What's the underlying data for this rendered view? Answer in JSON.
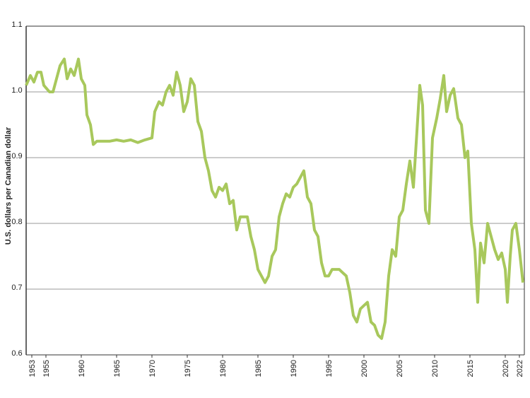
{
  "chart_data": {
    "type": "line",
    "y_label": "U.S. dollars per Canadian dollar",
    "x": [
      1952.2,
      1952.8,
      1953.3,
      1953.8,
      1954.3,
      1954.7,
      1955.5,
      1956.0,
      1956.5,
      1957.0,
      1957.6,
      1958.0,
      1958.5,
      1959.0,
      1959.6,
      1960.0,
      1960.5,
      1960.8,
      1961.3,
      1961.7,
      1962.2,
      1963,
      1964,
      1965,
      1966,
      1967,
      1968,
      1969,
      1970,
      1970.4,
      1971,
      1971.5,
      1972,
      1972.5,
      1973,
      1973.5,
      1974,
      1974.5,
      1975,
      1975.5,
      1976,
      1976.5,
      1977,
      1977.5,
      1978,
      1978.5,
      1979,
      1979.5,
      1980,
      1980.5,
      1981,
      1981.5,
      1982,
      1982.5,
      1983,
      1983.5,
      1984,
      1984.5,
      1985,
      1985.5,
      1986,
      1986.5,
      1987,
      1987.5,
      1988,
      1988.5,
      1989,
      1989.5,
      1990,
      1990.5,
      1991,
      1991.5,
      1992,
      1992.5,
      1993,
      1993.5,
      1994,
      1994.5,
      1995,
      1995.5,
      1996,
      1996.5,
      1997,
      1997.5,
      1998,
      1998.5,
      1999,
      1999.5,
      2000,
      2000.5,
      2001,
      2001.5,
      2002,
      2002.5,
      2003,
      2003.5,
      2004,
      2004.5,
      2005,
      2005.5,
      2006,
      2006.5,
      2007,
      2007.5,
      2007.9,
      2008.3,
      2008.7,
      2009.2,
      2009.7,
      2010.3,
      2010.8,
      2011.3,
      2011.7,
      2012.2,
      2012.7,
      2013.3,
      2013.8,
      2014.3,
      2014.7,
      2015.2,
      2015.7,
      2016.1,
      2016.5,
      2017,
      2017.5,
      2018,
      2018.5,
      2019,
      2019.5,
      2020,
      2020.3,
      2020.7,
      2021,
      2021.5,
      2022,
      2022.5
    ],
    "series": [
      {
        "color": "#a8c85c",
        "values": [
          1.01,
          1.025,
          1.015,
          1.03,
          1.03,
          1.01,
          1.0,
          1.0,
          1.02,
          1.04,
          1.05,
          1.02,
          1.035,
          1.025,
          1.05,
          1.02,
          1.01,
          0.965,
          0.95,
          0.92,
          0.925,
          0.925,
          0.925,
          0.927,
          0.925,
          0.927,
          0.923,
          0.927,
          0.93,
          0.97,
          0.985,
          0.98,
          1.0,
          1.01,
          0.995,
          1.03,
          1.01,
          0.97,
          0.985,
          1.02,
          1.01,
          0.955,
          0.94,
          0.9,
          0.88,
          0.85,
          0.84,
          0.855,
          0.85,
          0.86,
          0.83,
          0.835,
          0.79,
          0.81,
          0.81,
          0.81,
          0.78,
          0.76,
          0.73,
          0.72,
          0.71,
          0.72,
          0.75,
          0.76,
          0.81,
          0.83,
          0.845,
          0.84,
          0.855,
          0.86,
          0.87,
          0.88,
          0.84,
          0.83,
          0.79,
          0.78,
          0.74,
          0.72,
          0.72,
          0.73,
          0.73,
          0.73,
          0.725,
          0.72,
          0.695,
          0.66,
          0.65,
          0.67,
          0.675,
          0.68,
          0.65,
          0.645,
          0.63,
          0.625,
          0.65,
          0.72,
          0.76,
          0.75,
          0.81,
          0.82,
          0.86,
          0.895,
          0.855,
          0.94,
          1.01,
          0.98,
          0.82,
          0.8,
          0.93,
          0.96,
          0.99,
          1.025,
          0.97,
          0.995,
          1.005,
          0.96,
          0.95,
          0.9,
          0.91,
          0.8,
          0.76,
          0.68,
          0.77,
          0.74,
          0.8,
          0.78,
          0.76,
          0.745,
          0.755,
          0.73,
          0.68,
          0.75,
          0.79,
          0.8,
          0.76,
          0.71
        ]
      }
    ],
    "xlim": [
      1952.2,
      2022.7
    ],
    "xticks": [
      1953,
      1955,
      1960,
      1965,
      1970,
      1975,
      1980,
      1985,
      1990,
      1995,
      2000,
      2005,
      2010,
      2015,
      2020,
      2022
    ],
    "ylim": [
      0.6,
      1.1
    ],
    "yticks": [
      0.6,
      0.7,
      0.8,
      0.9,
      {
        "value": 1,
        "label": "1.0"
      },
      1.1
    ],
    "grid": true
  }
}
